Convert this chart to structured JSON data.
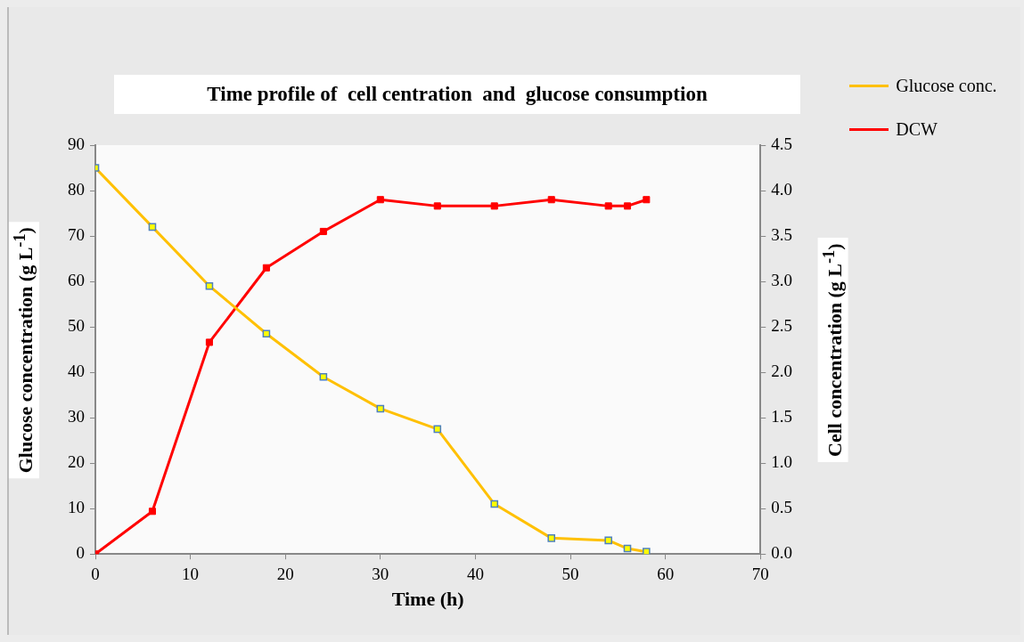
{
  "chart_data": {
    "type": "line",
    "title": "Time profile of  cell centration  and  glucose consumption",
    "xlabel": "Time (h)",
    "ylabel": "Glucose concentration (g L$^{-1}$)",
    "y2label": "Cell concentration (g L$^{-1}$)",
    "xlim": [
      0,
      70
    ],
    "xticks": [
      0,
      10,
      20,
      30,
      40,
      50,
      60,
      70
    ],
    "ylim": [
      0,
      90
    ],
    "yticks": [
      0,
      10,
      20,
      30,
      40,
      50,
      60,
      70,
      80,
      90
    ],
    "y2lim": [
      0,
      4.5
    ],
    "y2ticks": [
      {
        "value": 0,
        "label": "0.0"
      },
      {
        "value": 0.5,
        "label": "0.5"
      },
      {
        "value": 1,
        "label": "1.0"
      },
      {
        "value": 1.5,
        "label": "1.5"
      },
      {
        "value": 2,
        "label": "2.0"
      },
      {
        "value": 2.5,
        "label": "2.5"
      },
      {
        "value": 3,
        "label": "3.0"
      },
      {
        "value": 3.5,
        "label": "3.5"
      },
      {
        "value": 4,
        "label": "4.0"
      },
      {
        "value": 4.5,
        "label": "4.5"
      }
    ],
    "x": [
      0,
      6,
      12,
      18,
      24,
      30,
      36,
      42,
      48,
      54,
      56,
      58
    ],
    "series": [
      {
        "name": "Glucose conc.",
        "color": "#ffc000",
        "values": [
          85,
          72,
          59,
          48.5,
          39,
          32,
          27.5,
          11,
          3.5,
          3,
          1.2,
          0.5
        ]
      },
      {
        "name": "DCW",
        "color": "#ff0000",
        "axis": "y2",
        "values": [
          0,
          0.47,
          2.33,
          3.15,
          3.55,
          3.9,
          3.83,
          3.83,
          3.9,
          3.83,
          3.83,
          3.9
        ]
      }
    ],
    "marker": "square",
    "line_style": "solid",
    "grid": false,
    "legend": "top right"
  }
}
